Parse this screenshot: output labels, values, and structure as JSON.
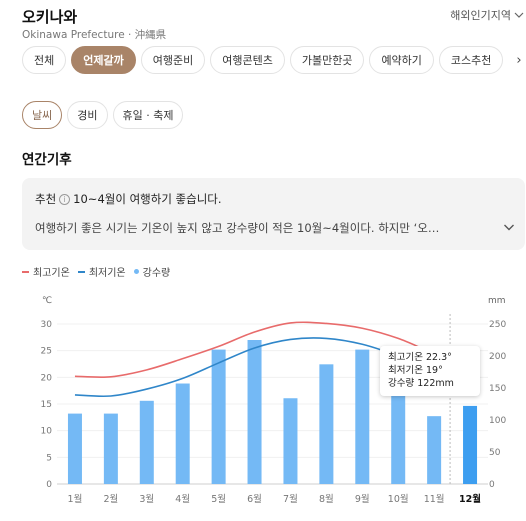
{
  "header": {
    "title": "오키나와",
    "subtitle": "Okinawa Prefecture · 沖縄県",
    "region_link": "해외인기지역"
  },
  "tabs": [
    {
      "label": "전체",
      "active": false
    },
    {
      "label": "언제갈까",
      "active": true
    },
    {
      "label": "여행준비",
      "active": false
    },
    {
      "label": "여행콘텐츠",
      "active": false
    },
    {
      "label": "가볼만한곳",
      "active": false
    },
    {
      "label": "예약하기",
      "active": false
    },
    {
      "label": "코스추천",
      "active": false
    }
  ],
  "subtabs": [
    {
      "label": "날씨",
      "active": true
    },
    {
      "label": "경비",
      "active": false
    },
    {
      "label": "휴일 · 축제",
      "active": false
    }
  ],
  "section_title": "연간기후",
  "tip": {
    "label": "추천",
    "headline": "10~4월이 여행하기 좋습니다.",
    "body": "여행하기 좋은 시기는 기온이 높지 않고 강수량이 적은 10월~4월이다. 하지만 ‘오…"
  },
  "legend": [
    {
      "label": "최고기온",
      "color": "#e86b6b",
      "kind": "line"
    },
    {
      "label": "최저기온",
      "color": "#2f86c9",
      "kind": "line"
    },
    {
      "label": "강수량",
      "color": "#74b9f5",
      "kind": "dot"
    }
  ],
  "tooltip": {
    "max_temp": "최고기온 22.3°",
    "min_temp": "최저기온 19°",
    "rain": "강수량 122mm"
  },
  "chart_data": {
    "type": "bar",
    "categories": [
      "1월",
      "2월",
      "3월",
      "4월",
      "5월",
      "6월",
      "7월",
      "8월",
      "9월",
      "10월",
      "11월",
      "12월"
    ],
    "selected_index": 11,
    "y_left_label": "℃",
    "y_left_ticks": [
      0,
      5,
      10,
      15,
      20,
      25,
      30
    ],
    "y_left_range": [
      0,
      30
    ],
    "y_right_label": "mm",
    "y_right_ticks": [
      0,
      50,
      100,
      150,
      200,
      250
    ],
    "y_right_range": [
      0,
      250
    ],
    "series": [
      {
        "name": "최고기온",
        "type": "line",
        "axis": "left",
        "color": "#e86b6b",
        "values": [
          20.2,
          20.1,
          21.4,
          23.5,
          25.8,
          28.5,
          30.2,
          30.1,
          29.2,
          27.3,
          24.5,
          22.3
        ]
      },
      {
        "name": "최저기온",
        "type": "line",
        "axis": "left",
        "color": "#2f86c9",
        "values": [
          16.7,
          16.5,
          17.8,
          19.8,
          22.7,
          25.5,
          27.1,
          27.3,
          26.2,
          24.0,
          21.2,
          19.0
        ]
      },
      {
        "name": "강수량",
        "type": "bar",
        "axis": "right",
        "color": "#74b9f5",
        "selected_color": "#3d9ef0",
        "values": [
          110,
          110,
          130,
          157,
          210,
          225,
          134,
          187,
          210,
          162,
          106,
          122
        ]
      }
    ]
  }
}
